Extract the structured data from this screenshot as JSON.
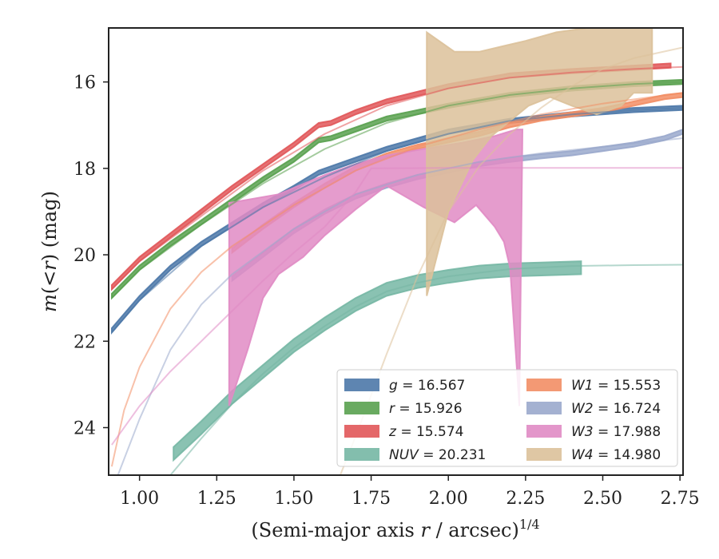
{
  "chart_data": {
    "type": "area",
    "xlabel": "(Semi-major axis r / arcsec)^{1/4}",
    "xlabel_main": "(Semi-major axis ",
    "xlabel_var": "r",
    "xlabel_mid": " / arcsec)",
    "xlabel_sup": "1/4",
    "ylabel": "m(<r) (mag)",
    "ylabel_lead": "m",
    "ylabel_paren_open": "(",
    "ylabel_var": "<r",
    "ylabel_paren_close": ")",
    "ylabel_tail": " (mag)",
    "xlim": [
      0.9,
      2.76
    ],
    "ylim": [
      25.1,
      14.75
    ],
    "y_inverted": true,
    "x_ticks": [
      1.0,
      1.25,
      1.5,
      1.75,
      2.0,
      2.25,
      2.5,
      2.75
    ],
    "x_tick_labels": [
      "1.00",
      "1.25",
      "1.50",
      "1.75",
      "2.00",
      "2.25",
      "2.50",
      "2.75"
    ],
    "y_ticks": [
      16,
      18,
      20,
      22,
      24
    ],
    "y_tick_labels": [
      "16",
      "18",
      "20",
      "22",
      "24"
    ],
    "legend_position": "lower-right",
    "legend_columns": 2,
    "series": [
      {
        "name": "g",
        "legend_value": "= 16.567",
        "color": "#4c78a8",
        "band_width_mag": 0.1,
        "band": [
          [
            0.91,
            21.75
          ],
          [
            1.0,
            21.0
          ],
          [
            1.1,
            20.3
          ],
          [
            1.2,
            19.75
          ],
          [
            1.3,
            19.3
          ],
          [
            1.4,
            18.85
          ],
          [
            1.5,
            18.45
          ],
          [
            1.58,
            18.1
          ],
          [
            1.7,
            17.8
          ],
          [
            1.8,
            17.55
          ],
          [
            2.0,
            17.15
          ],
          [
            2.2,
            16.9
          ],
          [
            2.4,
            16.75
          ],
          [
            2.6,
            16.65
          ],
          [
            2.76,
            16.6
          ]
        ],
        "fit": [
          [
            0.91,
            21.8
          ],
          [
            1.0,
            21.05
          ],
          [
            1.2,
            19.8
          ],
          [
            1.4,
            18.9
          ],
          [
            1.6,
            18.2
          ],
          [
            1.8,
            17.6
          ],
          [
            2.0,
            17.2
          ],
          [
            2.2,
            16.9
          ],
          [
            2.4,
            16.75
          ],
          [
            2.6,
            16.65
          ],
          [
            2.76,
            16.6
          ]
        ]
      },
      {
        "name": "r",
        "legend_value": "= 15.926",
        "color": "#59a14f",
        "band_width_mag": 0.1,
        "band": [
          [
            0.91,
            20.95
          ],
          [
            1.0,
            20.3
          ],
          [
            1.1,
            19.75
          ],
          [
            1.2,
            19.25
          ],
          [
            1.3,
            18.75
          ],
          [
            1.4,
            18.25
          ],
          [
            1.5,
            17.8
          ],
          [
            1.58,
            17.35
          ],
          [
            1.62,
            17.3
          ],
          [
            1.7,
            17.1
          ],
          [
            1.8,
            16.85
          ],
          [
            2.0,
            16.55
          ],
          [
            2.2,
            16.3
          ],
          [
            2.4,
            16.15
          ],
          [
            2.6,
            16.05
          ],
          [
            2.76,
            16.0
          ]
        ],
        "fit": [
          [
            0.91,
            21.0
          ],
          [
            1.0,
            20.35
          ],
          [
            1.2,
            19.3
          ],
          [
            1.4,
            18.35
          ],
          [
            1.6,
            17.55
          ],
          [
            1.8,
            16.95
          ],
          [
            2.0,
            16.55
          ],
          [
            2.2,
            16.3
          ],
          [
            2.4,
            16.15
          ],
          [
            2.6,
            16.05
          ],
          [
            2.76,
            16.0
          ]
        ]
      },
      {
        "name": "z",
        "legend_value": "= 15.574",
        "color": "#e15759",
        "band_width_mag": 0.1,
        "band": [
          [
            0.91,
            20.75
          ],
          [
            1.0,
            20.1
          ],
          [
            1.1,
            19.55
          ],
          [
            1.2,
            19.0
          ],
          [
            1.3,
            18.45
          ],
          [
            1.4,
            17.95
          ],
          [
            1.5,
            17.45
          ],
          [
            1.58,
            17.0
          ],
          [
            1.62,
            16.95
          ],
          [
            1.7,
            16.7
          ],
          [
            1.8,
            16.45
          ],
          [
            2.0,
            16.1
          ],
          [
            2.2,
            15.85
          ],
          [
            2.4,
            15.75
          ],
          [
            2.6,
            15.67
          ],
          [
            2.72,
            15.62
          ]
        ],
        "fit": [
          [
            0.91,
            20.8
          ],
          [
            1.0,
            20.15
          ],
          [
            1.2,
            19.1
          ],
          [
            1.4,
            18.05
          ],
          [
            1.6,
            17.2
          ],
          [
            1.8,
            16.55
          ],
          [
            2.0,
            16.15
          ],
          [
            2.2,
            15.9
          ],
          [
            2.4,
            15.78
          ],
          [
            2.6,
            15.7
          ],
          [
            2.76,
            15.65
          ]
        ]
      },
      {
        "name": "NUV",
        "legend_value": "= 20.231",
        "color": "#76b7a4",
        "band_width_mag": 0.3,
        "band": [
          [
            1.11,
            24.6
          ],
          [
            1.2,
            24.0
          ],
          [
            1.3,
            23.3
          ],
          [
            1.4,
            22.7
          ],
          [
            1.5,
            22.1
          ],
          [
            1.6,
            21.6
          ],
          [
            1.7,
            21.15
          ],
          [
            1.8,
            20.8
          ],
          [
            1.9,
            20.62
          ],
          [
            2.0,
            20.5
          ],
          [
            2.1,
            20.4
          ],
          [
            2.2,
            20.35
          ],
          [
            2.3,
            20.33
          ],
          [
            2.43,
            20.3
          ]
        ],
        "fit": [
          [
            1.1,
            25.1
          ],
          [
            1.2,
            24.25
          ],
          [
            1.3,
            23.45
          ],
          [
            1.4,
            22.75
          ],
          [
            1.5,
            22.15
          ],
          [
            1.6,
            21.65
          ],
          [
            1.7,
            21.2
          ],
          [
            1.8,
            20.85
          ],
          [
            1.9,
            20.65
          ],
          [
            2.0,
            20.5
          ],
          [
            2.2,
            20.33
          ],
          [
            2.4,
            20.26
          ],
          [
            2.6,
            20.24
          ],
          [
            2.76,
            20.23
          ]
        ]
      },
      {
        "name": "W1",
        "legend_value": "= 15.553",
        "color": "#f28e65",
        "band_width_mag": 0.1,
        "band": [
          [
            1.3,
            19.9
          ],
          [
            1.4,
            19.35
          ],
          [
            1.5,
            18.85
          ],
          [
            1.6,
            18.4
          ],
          [
            1.7,
            18.0
          ],
          [
            1.8,
            17.7
          ],
          [
            1.9,
            17.5
          ],
          [
            2.0,
            17.35
          ],
          [
            2.1,
            17.2
          ],
          [
            2.2,
            17.0
          ],
          [
            2.3,
            16.85
          ],
          [
            2.4,
            16.75
          ],
          [
            2.5,
            16.65
          ],
          [
            2.6,
            16.5
          ],
          [
            2.7,
            16.35
          ],
          [
            2.76,
            16.3
          ]
        ],
        "fit": [
          [
            0.91,
            24.9
          ],
          [
            0.95,
            23.6
          ],
          [
            1.0,
            22.6
          ],
          [
            1.1,
            21.25
          ],
          [
            1.2,
            20.4
          ],
          [
            1.3,
            19.8
          ],
          [
            1.5,
            18.85
          ],
          [
            1.7,
            18.05
          ],
          [
            1.9,
            17.5
          ],
          [
            2.1,
            17.1
          ],
          [
            2.3,
            16.75
          ],
          [
            2.5,
            16.5
          ],
          [
            2.76,
            16.25
          ]
        ]
      },
      {
        "name": "W2",
        "legend_value": "= 16.724",
        "color": "#9aa9cc",
        "band_width_mag": 0.1,
        "band": [
          [
            1.3,
            20.55
          ],
          [
            1.4,
            20.0
          ],
          [
            1.5,
            19.45
          ],
          [
            1.6,
            19.0
          ],
          [
            1.7,
            18.65
          ],
          [
            1.8,
            18.4
          ],
          [
            1.9,
            18.2
          ],
          [
            2.0,
            18.05
          ],
          [
            2.1,
            17.9
          ],
          [
            2.2,
            17.8
          ],
          [
            2.3,
            17.72
          ],
          [
            2.4,
            17.65
          ],
          [
            2.5,
            17.55
          ],
          [
            2.6,
            17.45
          ],
          [
            2.7,
            17.3
          ],
          [
            2.76,
            17.15
          ]
        ],
        "fit": [
          [
            0.93,
            25.1
          ],
          [
            1.0,
            23.8
          ],
          [
            1.1,
            22.2
          ],
          [
            1.2,
            21.15
          ],
          [
            1.3,
            20.45
          ],
          [
            1.5,
            19.4
          ],
          [
            1.7,
            18.6
          ],
          [
            1.9,
            18.15
          ],
          [
            2.1,
            17.85
          ],
          [
            2.3,
            17.65
          ],
          [
            2.5,
            17.5
          ],
          [
            2.76,
            17.3
          ]
        ]
      },
      {
        "name": "W3",
        "legend_value": "= 17.988",
        "color": "#e08bc4",
        "upper": [
          [
            1.29,
            18.8
          ],
          [
            1.45,
            18.6
          ],
          [
            1.5,
            18.45
          ],
          [
            1.6,
            18.15
          ],
          [
            1.7,
            17.9
          ],
          [
            1.8,
            17.7
          ],
          [
            1.92,
            17.55
          ],
          [
            2.05,
            17.4
          ],
          [
            2.15,
            17.25
          ],
          [
            2.22,
            17.1
          ],
          [
            2.23,
            17.1
          ],
          [
            2.24,
            17.1
          ]
        ],
        "lower": [
          [
            1.29,
            23.5
          ],
          [
            1.35,
            22.2
          ],
          [
            1.4,
            21.0
          ],
          [
            1.45,
            20.45
          ],
          [
            1.53,
            20.05
          ],
          [
            1.6,
            19.55
          ],
          [
            1.7,
            18.95
          ],
          [
            1.8,
            18.4
          ],
          [
            1.92,
            18.9
          ],
          [
            2.02,
            19.25
          ],
          [
            2.09,
            18.85
          ],
          [
            2.15,
            19.35
          ],
          [
            2.18,
            19.7
          ],
          [
            2.2,
            20.3
          ],
          [
            2.23,
            23.5
          ],
          [
            2.24,
            17.1
          ]
        ],
        "fit": [
          [
            0.91,
            24.4
          ],
          [
            1.0,
            23.5
          ],
          [
            1.1,
            22.7
          ],
          [
            1.2,
            22.0
          ],
          [
            1.3,
            21.3
          ],
          [
            1.4,
            20.6
          ],
          [
            1.5,
            19.95
          ],
          [
            1.6,
            19.35
          ],
          [
            1.7,
            18.55
          ],
          [
            1.75,
            18.0
          ],
          [
            2.0,
            17.99
          ],
          [
            2.5,
            17.99
          ],
          [
            2.76,
            17.99
          ]
        ]
      },
      {
        "name": "W4",
        "legend_value": "= 14.980",
        "color": "#dcc19a",
        "upper": [
          [
            1.93,
            14.85
          ],
          [
            2.02,
            15.3
          ],
          [
            2.1,
            15.3
          ],
          [
            2.25,
            15.05
          ],
          [
            2.35,
            14.85
          ],
          [
            2.45,
            14.75
          ],
          [
            2.66,
            14.75
          ]
        ],
        "lower": [
          [
            1.93,
            20.95
          ],
          [
            2.0,
            19.0
          ],
          [
            2.08,
            17.8
          ],
          [
            2.14,
            17.25
          ],
          [
            2.2,
            16.9
          ],
          [
            2.26,
            16.55
          ],
          [
            2.33,
            16.35
          ],
          [
            2.4,
            16.55
          ],
          [
            2.48,
            16.75
          ],
          [
            2.56,
            16.55
          ],
          [
            2.6,
            16.25
          ],
          [
            2.66,
            16.25
          ]
        ],
        "fit": [
          [
            1.65,
            25.1
          ],
          [
            1.7,
            24.2
          ],
          [
            1.8,
            22.3
          ],
          [
            1.9,
            20.5
          ],
          [
            2.0,
            19.0
          ],
          [
            2.1,
            17.95
          ],
          [
            2.2,
            17.2
          ],
          [
            2.3,
            16.6
          ],
          [
            2.4,
            16.1
          ],
          [
            2.5,
            15.7
          ],
          [
            2.6,
            15.45
          ],
          [
            2.76,
            15.2
          ]
        ]
      }
    ]
  }
}
